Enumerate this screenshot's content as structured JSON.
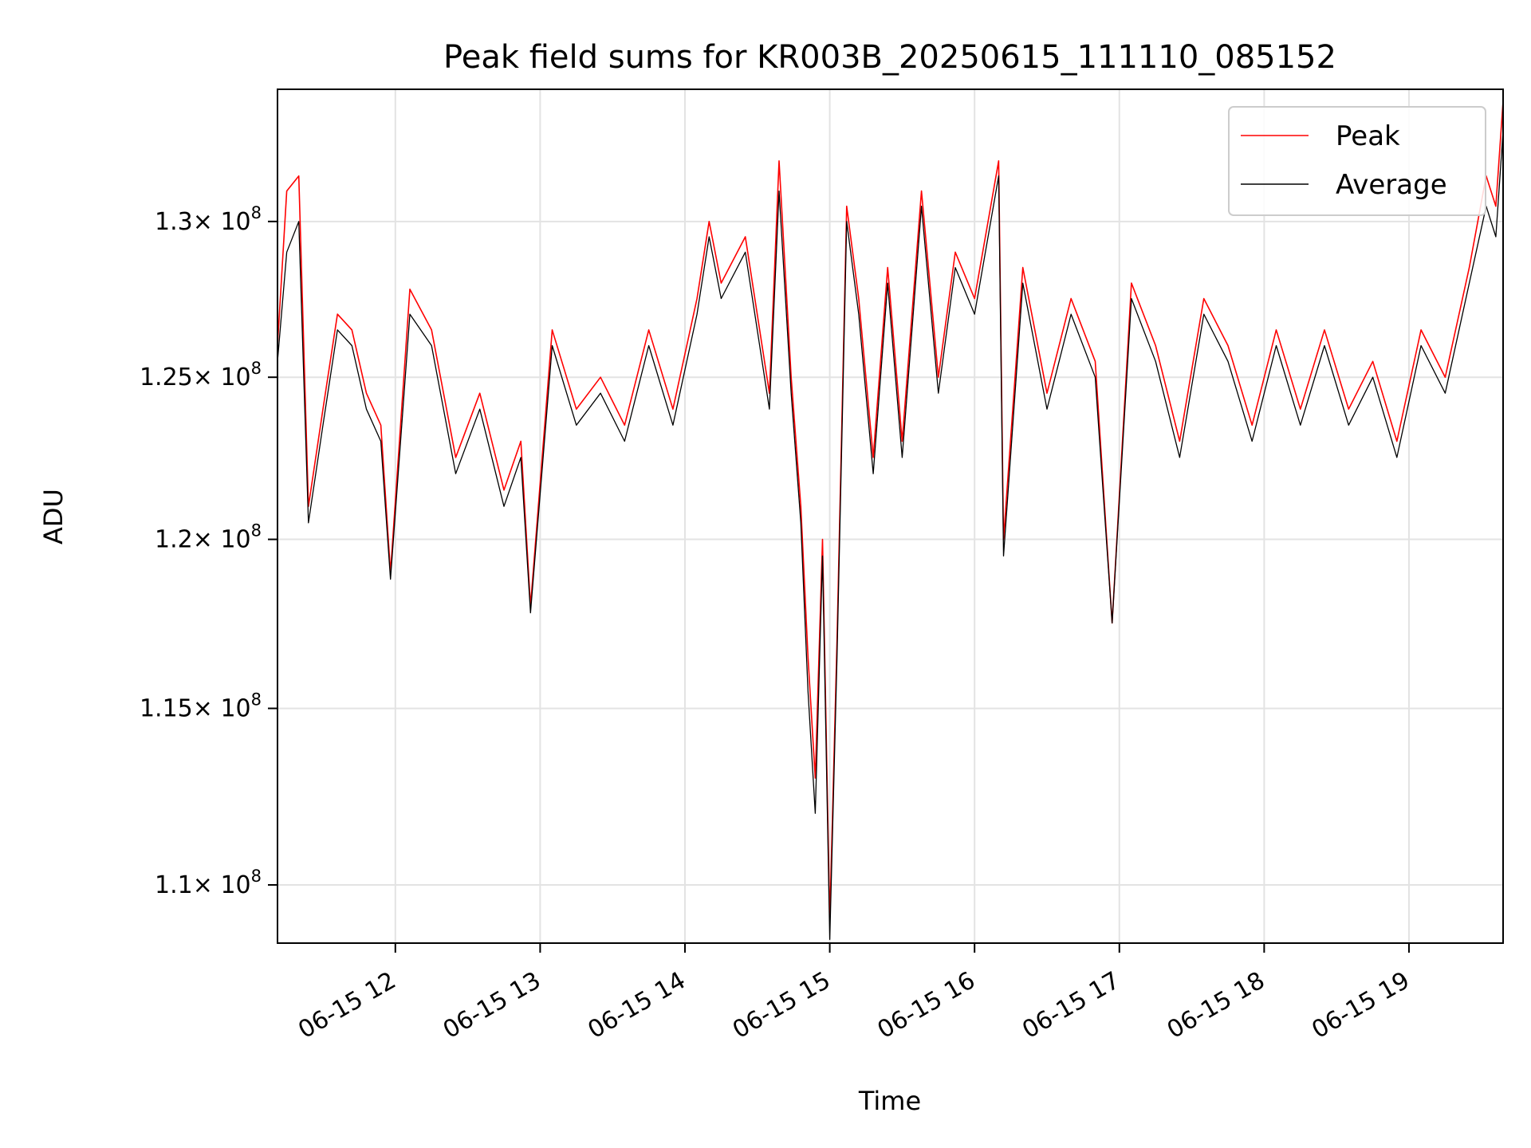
{
  "chart_data": {
    "type": "line",
    "title": "Peak field sums for KR003B_20250615_111110_085152",
    "xlabel": "Time",
    "ylabel": "ADU",
    "x_type": "datetime",
    "x_range": [
      "2025-06-15T11:11:10",
      "2025-06-15T19:39:00"
    ],
    "y_scale": "log",
    "ylim": [
      108400000,
      134400000
    ],
    "grid": true,
    "legend_position": "upper right",
    "x_ticks": [
      {
        "value": "2025-06-15T12:00:00",
        "label": "06-15 12"
      },
      {
        "value": "2025-06-15T13:00:00",
        "label": "06-15 13"
      },
      {
        "value": "2025-06-15T14:00:00",
        "label": "06-15 14"
      },
      {
        "value": "2025-06-15T15:00:00",
        "label": "06-15 15"
      },
      {
        "value": "2025-06-15T16:00:00",
        "label": "06-15 16"
      },
      {
        "value": "2025-06-15T17:00:00",
        "label": "06-15 17"
      },
      {
        "value": "2025-06-15T18:00:00",
        "label": "06-15 18"
      },
      {
        "value": "2025-06-15T19:00:00",
        "label": "06-15 19"
      }
    ],
    "y_ticks": [
      {
        "value": 110000000,
        "mantissa": "1.1",
        "exponent": "8"
      },
      {
        "value": 115000000,
        "mantissa": "1.15",
        "exponent": "8"
      },
      {
        "value": 120000000,
        "mantissa": "1.2",
        "exponent": "8"
      },
      {
        "value": 125000000,
        "mantissa": "1.25",
        "exponent": "8"
      },
      {
        "value": 130000000,
        "mantissa": "1.3",
        "exponent": "8"
      }
    ],
    "tick_multiplier": "× 10",
    "series": [
      {
        "name": "Peak",
        "color": "#ff0000",
        "x": [
          "2025-06-15T11:11:10",
          "2025-06-15T11:15:00",
          "2025-06-15T11:20:00",
          "2025-06-15T11:24:00",
          "2025-06-15T11:30:00",
          "2025-06-15T11:36:00",
          "2025-06-15T11:42:00",
          "2025-06-15T11:48:00",
          "2025-06-15T11:54:00",
          "2025-06-15T11:58:00",
          "2025-06-15T12:06:00",
          "2025-06-15T12:15:00",
          "2025-06-15T12:25:00",
          "2025-06-15T12:35:00",
          "2025-06-15T12:45:00",
          "2025-06-15T12:52:00",
          "2025-06-15T12:56:00",
          "2025-06-15T13:05:00",
          "2025-06-15T13:15:00",
          "2025-06-15T13:25:00",
          "2025-06-15T13:35:00",
          "2025-06-15T13:45:00",
          "2025-06-15T13:55:00",
          "2025-06-15T14:05:00",
          "2025-06-15T14:10:00",
          "2025-06-15T14:15:00",
          "2025-06-15T14:25:00",
          "2025-06-15T14:35:00",
          "2025-06-15T14:39:00",
          "2025-06-15T14:44:00",
          "2025-06-15T14:48:00",
          "2025-06-15T14:51:00",
          "2025-06-15T14:54:00",
          "2025-06-15T14:57:00",
          "2025-06-15T15:00:00",
          "2025-06-15T15:03:00",
          "2025-06-15T15:07:00",
          "2025-06-15T15:12:00",
          "2025-06-15T15:18:00",
          "2025-06-15T15:24:00",
          "2025-06-15T15:30:00",
          "2025-06-15T15:38:00",
          "2025-06-15T15:45:00",
          "2025-06-15T15:52:00",
          "2025-06-15T16:00:00",
          "2025-06-15T16:10:00",
          "2025-06-15T16:12:00",
          "2025-06-15T16:20:00",
          "2025-06-15T16:30:00",
          "2025-06-15T16:40:00",
          "2025-06-15T16:50:00",
          "2025-06-15T16:57:00",
          "2025-06-15T17:05:00",
          "2025-06-15T17:15:00",
          "2025-06-15T17:25:00",
          "2025-06-15T17:35:00",
          "2025-06-15T17:45:00",
          "2025-06-15T17:55:00",
          "2025-06-15T18:05:00",
          "2025-06-15T18:15:00",
          "2025-06-15T18:25:00",
          "2025-06-15T18:35:00",
          "2025-06-15T18:45:00",
          "2025-06-15T18:55:00",
          "2025-06-15T19:05:00",
          "2025-06-15T19:15:00",
          "2025-06-15T19:25:00",
          "2025-06-15T19:32:00",
          "2025-06-15T19:36:00",
          "2025-06-15T19:39:00"
        ],
        "values": [
          126000000,
          131000000,
          131500000,
          121000000,
          124000000,
          127000000,
          126500000,
          124500000,
          123500000,
          119000000,
          127800000,
          126500000,
          122500000,
          124500000,
          121500000,
          123000000,
          118000000,
          126500000,
          124000000,
          125000000,
          123500000,
          126500000,
          124000000,
          127500000,
          130000000,
          128000000,
          129500000,
          124500000,
          132000000,
          125000000,
          121000000,
          116500000,
          113000000,
          120000000,
          109000000,
          117000000,
          130500000,
          127500000,
          122500000,
          128500000,
          123000000,
          131000000,
          125000000,
          129000000,
          127500000,
          132000000,
          120000000,
          128500000,
          124500000,
          127500000,
          125500000,
          117500000,
          128000000,
          126000000,
          123000000,
          127500000,
          126000000,
          123500000,
          126500000,
          124000000,
          126500000,
          124000000,
          125500000,
          123000000,
          126500000,
          125000000,
          128500000,
          131500000,
          130500000,
          134000000
        ]
      },
      {
        "name": "Average",
        "color": "#000000",
        "x": [
          "2025-06-15T11:11:10",
          "2025-06-15T11:15:00",
          "2025-06-15T11:20:00",
          "2025-06-15T11:24:00",
          "2025-06-15T11:30:00",
          "2025-06-15T11:36:00",
          "2025-06-15T11:42:00",
          "2025-06-15T11:48:00",
          "2025-06-15T11:54:00",
          "2025-06-15T11:58:00",
          "2025-06-15T12:06:00",
          "2025-06-15T12:15:00",
          "2025-06-15T12:25:00",
          "2025-06-15T12:35:00",
          "2025-06-15T12:45:00",
          "2025-06-15T12:52:00",
          "2025-06-15T12:56:00",
          "2025-06-15T13:05:00",
          "2025-06-15T13:15:00",
          "2025-06-15T13:25:00",
          "2025-06-15T13:35:00",
          "2025-06-15T13:45:00",
          "2025-06-15T13:55:00",
          "2025-06-15T14:05:00",
          "2025-06-15T14:10:00",
          "2025-06-15T14:15:00",
          "2025-06-15T14:25:00",
          "2025-06-15T14:35:00",
          "2025-06-15T14:39:00",
          "2025-06-15T14:44:00",
          "2025-06-15T14:48:00",
          "2025-06-15T14:51:00",
          "2025-06-15T14:54:00",
          "2025-06-15T14:57:00",
          "2025-06-15T15:00:00",
          "2025-06-15T15:03:00",
          "2025-06-15T15:07:00",
          "2025-06-15T15:12:00",
          "2025-06-15T15:18:00",
          "2025-06-15T15:24:00",
          "2025-06-15T15:30:00",
          "2025-06-15T15:38:00",
          "2025-06-15T15:45:00",
          "2025-06-15T15:52:00",
          "2025-06-15T16:00:00",
          "2025-06-15T16:10:00",
          "2025-06-15T16:12:00",
          "2025-06-15T16:20:00",
          "2025-06-15T16:30:00",
          "2025-06-15T16:40:00",
          "2025-06-15T16:50:00",
          "2025-06-15T16:57:00",
          "2025-06-15T17:05:00",
          "2025-06-15T17:15:00",
          "2025-06-15T17:25:00",
          "2025-06-15T17:35:00",
          "2025-06-15T17:45:00",
          "2025-06-15T17:55:00",
          "2025-06-15T18:05:00",
          "2025-06-15T18:15:00",
          "2025-06-15T18:25:00",
          "2025-06-15T18:35:00",
          "2025-06-15T18:45:00",
          "2025-06-15T18:55:00",
          "2025-06-15T19:05:00",
          "2025-06-15T19:15:00",
          "2025-06-15T19:25:00",
          "2025-06-15T19:32:00",
          "2025-06-15T19:36:00",
          "2025-06-15T19:39:00"
        ],
        "values": [
          125500000,
          129000000,
          130000000,
          120500000,
          123500000,
          126500000,
          126000000,
          124000000,
          123000000,
          118800000,
          127000000,
          126000000,
          122000000,
          124000000,
          121000000,
          122500000,
          117800000,
          126000000,
          123500000,
          124500000,
          123000000,
          126000000,
          123500000,
          127000000,
          129500000,
          127500000,
          129000000,
          124000000,
          131000000,
          124500000,
          120500000,
          115500000,
          112000000,
          119500000,
          108500000,
          116500000,
          130000000,
          127000000,
          122000000,
          128000000,
          122500000,
          130500000,
          124500000,
          128500000,
          127000000,
          131500000,
          119500000,
          128000000,
          124000000,
          127000000,
          125000000,
          117500000,
          127500000,
          125500000,
          122500000,
          127000000,
          125500000,
          123000000,
          126000000,
          123500000,
          126000000,
          123500000,
          125000000,
          122500000,
          126000000,
          124500000,
          128000000,
          130500000,
          129500000,
          133000000
        ]
      }
    ]
  }
}
